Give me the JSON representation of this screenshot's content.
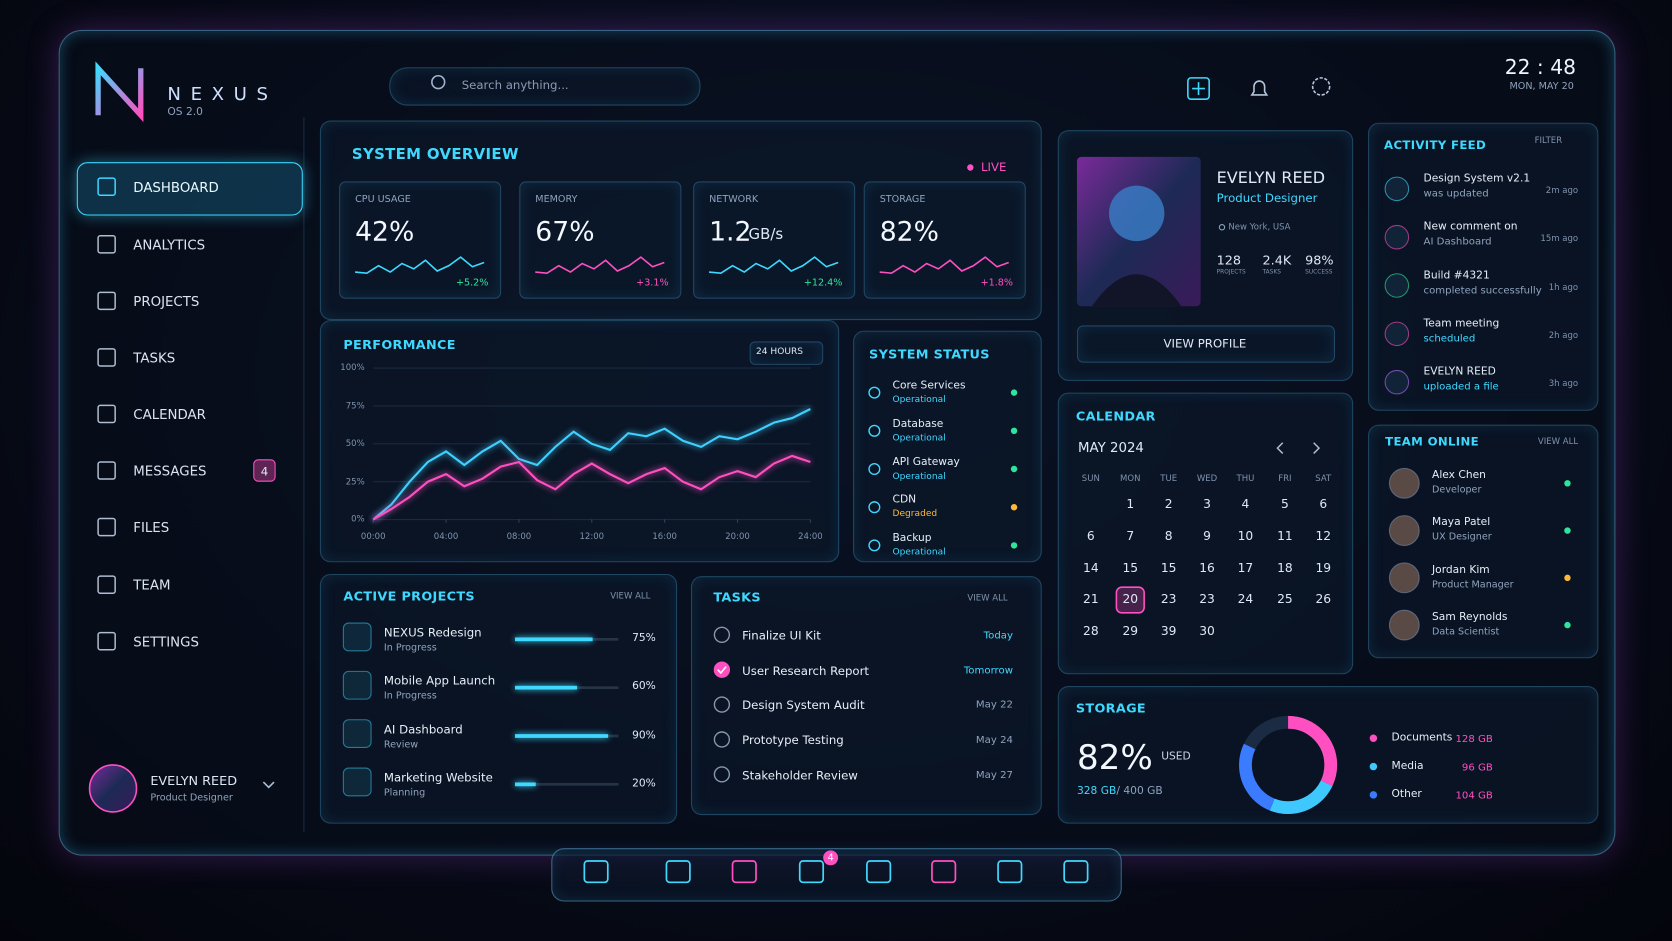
{
  "brand": {
    "name": "NEXUS",
    "version": "OS 2.0"
  },
  "search_placeholder": "Search anything...",
  "clock": {
    "time": "22 : 48",
    "date": "MON, MAY 20"
  },
  "nav": [
    {
      "label": "DASHBOARD"
    },
    {
      "label": "ANALYTICS"
    },
    {
      "label": "PROJECTS"
    },
    {
      "label": "TASKS"
    },
    {
      "label": "CALENDAR"
    },
    {
      "label": "MESSAGES",
      "badge": 4
    },
    {
      "label": "FILES"
    },
    {
      "label": "TEAM"
    },
    {
      "label": "SETTINGS"
    }
  ],
  "user": {
    "name": "EVELYN REED",
    "role": "Product Designer"
  },
  "overview": {
    "title": "SYSTEM OVERVIEW",
    "status": "LIVE",
    "metrics": [
      {
        "label": "CPU USAGE",
        "value": "42%",
        "change": "+5.2%"
      },
      {
        "label": "MEMORY",
        "value": "67%",
        "change": "+3.1%"
      },
      {
        "label": "NETWORK",
        "value": "1.2",
        "unit": "GB/s",
        "change": "+12.4%"
      },
      {
        "label": "STORAGE",
        "value": "82%",
        "change": "+1.8%"
      }
    ]
  },
  "performance": {
    "range": "24 HOURS"
  },
  "chart_data": {
    "type": "line",
    "title": "PERFORMANCE",
    "x": [
      0,
      1,
      2,
      3,
      4,
      5,
      6,
      7,
      8,
      9,
      10,
      11,
      12,
      13,
      14,
      15,
      16,
      17,
      18,
      19,
      20,
      21,
      22,
      23,
      24
    ],
    "xlim": [
      0,
      24
    ],
    "xticks": [
      {
        "value": 0,
        "label": "00:00"
      },
      {
        "value": 4,
        "label": "04:00"
      },
      {
        "value": 8,
        "label": "08:00"
      },
      {
        "value": 12,
        "label": "12:00"
      },
      {
        "value": 16,
        "label": "16:00"
      },
      {
        "value": 20,
        "label": "20:00"
      },
      {
        "value": 24,
        "label": "24:00"
      }
    ],
    "ylim": [
      0,
      100
    ],
    "yticks": [
      {
        "value": 0,
        "label": "0%"
      },
      {
        "value": 25,
        "label": "25%"
      },
      {
        "value": 50,
        "label": "50%"
      },
      {
        "value": 75,
        "label": "75%"
      },
      {
        "value": 100,
        "label": "100%"
      }
    ],
    "grid": true,
    "series": [
      {
        "color": "#3fd0ff",
        "values": [
          0,
          10,
          25,
          38,
          45,
          36,
          45,
          52,
          40,
          36,
          48,
          58,
          50,
          46,
          57,
          55,
          60,
          52,
          48,
          55,
          53,
          58,
          64,
          67,
          73
        ]
      },
      {
        "color": "#ff4fc0",
        "values": [
          0,
          7,
          15,
          25,
          30,
          22,
          27,
          35,
          38,
          26,
          20,
          30,
          37,
          30,
          24,
          30,
          34,
          25,
          20,
          28,
          32,
          28,
          37,
          42,
          38
        ]
      }
    ]
  },
  "status": {
    "title": "SYSTEM STATUS",
    "items": [
      {
        "name": "Core Services",
        "state": "Operational",
        "color": "#2ee59d"
      },
      {
        "name": "Database",
        "state": "Operational",
        "color": "#2ee59d"
      },
      {
        "name": "API Gateway",
        "state": "Operational",
        "color": "#2ee59d"
      },
      {
        "name": "CDN",
        "state": "Degraded",
        "color": "#ffb938"
      },
      {
        "name": "Backup",
        "state": "Operational",
        "color": "#2ee59d"
      }
    ]
  },
  "projects": {
    "title": "ACTIVE PROJECTS",
    "action": "VIEW ALL",
    "items": [
      {
        "name": "NEXUS Redesign",
        "status": "In Progress",
        "progress": 75,
        "progress_label": "75%"
      },
      {
        "name": "Mobile App Launch",
        "status": "In Progress",
        "progress": 60,
        "progress_label": "60%"
      },
      {
        "name": "AI Dashboard",
        "status": "Review",
        "progress": 90,
        "progress_label": "90%"
      },
      {
        "name": "Marketing Website",
        "status": "Planning",
        "progress": 20,
        "progress_label": "20%"
      }
    ]
  },
  "tasks": {
    "title": "TASKS",
    "action": "VIEW ALL",
    "items": [
      {
        "name": "Finalize UI Kit",
        "due": "Today",
        "done": false
      },
      {
        "name": "User Research Report",
        "due": "Tomorrow",
        "done": true
      },
      {
        "name": "Design System Audit",
        "due": "May 22",
        "done": false
      },
      {
        "name": "Prototype Testing",
        "due": "May 24",
        "done": false
      },
      {
        "name": "Stakeholder Review",
        "due": "May 27",
        "done": false
      }
    ]
  },
  "profile": {
    "name": "EVELYN REED",
    "role": "Product Designer",
    "location": "New York, USA",
    "stats": [
      {
        "value": "128",
        "label": "PROJECTS"
      },
      {
        "value": "2.4K",
        "label": "TASKS"
      },
      {
        "value": "98%",
        "label": "SUCCESS"
      }
    ],
    "button": "VIEW PROFILE"
  },
  "calendar": {
    "title": "CALENDAR",
    "month": "MAY 2024",
    "weekdays": [
      "SUN",
      "MON",
      "TUE",
      "WED",
      "THU",
      "FRI",
      "SAT"
    ],
    "selected": 20,
    "weeks": [
      [
        null,
        1,
        2,
        3,
        4,
        5,
        6
      ],
      [
        6,
        7,
        8,
        9,
        10,
        11,
        12
      ],
      [
        14,
        15,
        15,
        16,
        17,
        18,
        19
      ],
      [
        21,
        20,
        23,
        23,
        24,
        25,
        26
      ],
      [
        28,
        29,
        39,
        30,
        null,
        null,
        null
      ]
    ]
  },
  "storage": {
    "title": "STORAGE",
    "percent": "82%",
    "used": "USED",
    "usage": "328 GB",
    "capacity_label": "/ 400 GB",
    "capacity": 400,
    "segments": [
      {
        "name": "Documents",
        "amount": 128,
        "amount_label": "128 GB",
        "color": "#ff4fc0"
      },
      {
        "name": "Media",
        "amount": 96,
        "amount_label": "96 GB",
        "color": "#3fc8ff"
      },
      {
        "name": "Other",
        "amount": 104,
        "amount_label": "104 GB",
        "color": "#3a7bff"
      }
    ]
  },
  "activity": {
    "title": "ACTIVITY FEED",
    "action": "FILTER",
    "items": [
      {
        "title": "Design System v2.1",
        "detail": "was updated",
        "time": "2m ago"
      },
      {
        "title": "New comment on",
        "detail": "AI Dashboard",
        "time": "15m ago"
      },
      {
        "title": "Build #4321",
        "detail": "completed successfully",
        "time": "1h ago"
      },
      {
        "title": "Team meeting",
        "detail": "scheduled",
        "time": "2h ago"
      },
      {
        "title": "EVELYN REED",
        "detail": "uploaded a file",
        "time": "3h ago"
      }
    ]
  },
  "team": {
    "title": "TEAM ONLINE",
    "action": "VIEW ALL",
    "members": [
      {
        "name": "Alex Chen",
        "role": "Developer",
        "color": "#2ee59d"
      },
      {
        "name": "Maya Patel",
        "role": "UX Designer",
        "color": "#2ee59d"
      },
      {
        "name": "Jordan Kim",
        "role": "Product Manager",
        "color": "#ffb938"
      },
      {
        "name": "Sam Reynolds",
        "role": "Data Scientist",
        "color": "#2ee59d"
      }
    ]
  },
  "dock": {
    "badge": 4
  }
}
